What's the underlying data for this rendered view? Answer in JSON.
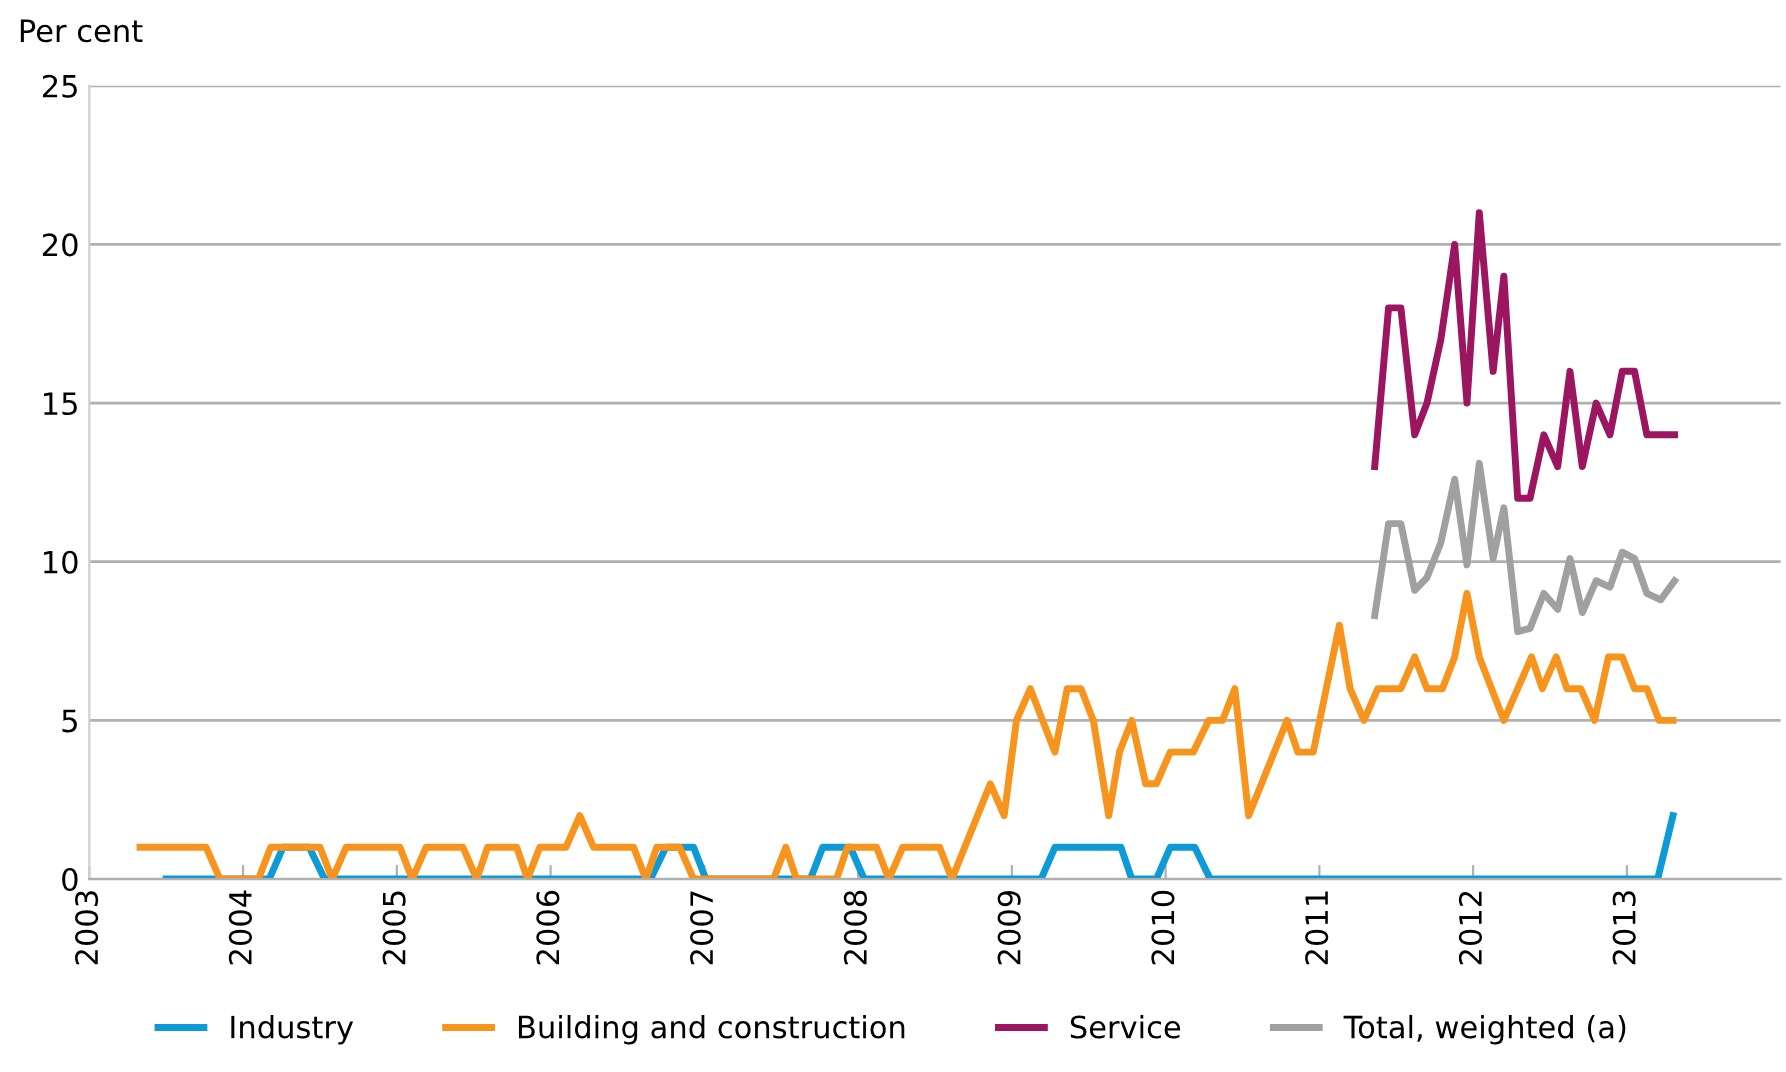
{
  "chart_data": {
    "type": "line",
    "ylabel": "Per cent",
    "xlim": [
      2003,
      2014
    ],
    "ylim": [
      0,
      25
    ],
    "xticks": [
      2003,
      2004,
      2005,
      2006,
      2007,
      2008,
      2009,
      2010,
      2011,
      2012,
      2013
    ],
    "yticks": [
      0,
      5,
      10,
      15,
      20,
      25
    ],
    "grid": "y",
    "legend": "bottom",
    "marker": "none",
    "line_style": "solid",
    "series": [
      {
        "name": "Industry",
        "color": "#0d9ad6",
        "x": [
          2003.5,
          2004.17,
          2004.26,
          2004.43,
          2004.53,
          2006.65,
          2006.75,
          2006.93,
          2007.01,
          2007.69,
          2007.77,
          2007.95,
          2008.04,
          2009.19,
          2009.28,
          2009.71,
          2009.78,
          2009.94,
          2010.03,
          2010.19,
          2010.29,
          2013.2,
          2013.3
        ],
        "values": [
          0,
          0,
          1,
          1,
          0,
          0,
          1,
          1,
          0,
          0,
          1,
          1,
          0,
          0,
          1,
          1,
          0,
          0,
          1,
          1,
          0,
          0,
          2
        ]
      },
      {
        "name": "Building and construction",
        "color": "#f7941d",
        "x": [
          2003.33,
          2003.76,
          2003.85,
          2004.1,
          2004.18,
          2004.5,
          2004.58,
          2004.67,
          2005.02,
          2005.1,
          2005.19,
          2005.43,
          2005.52,
          2005.59,
          2005.78,
          2005.85,
          2005.93,
          2006.1,
          2006.19,
          2006.28,
          2006.54,
          2006.62,
          2006.69,
          2006.84,
          2006.93,
          2007.45,
          2007.53,
          2007.6,
          2007.86,
          2007.93,
          2008.12,
          2008.2,
          2008.29,
          2008.53,
          2008.61,
          2008.86,
          2008.95,
          2009.03,
          2009.12,
          2009.28,
          2009.36,
          2009.45,
          2009.53,
          2009.63,
          2009.7,
          2009.78,
          2009.87,
          2009.94,
          2010.03,
          2010.18,
          2010.28,
          2010.37,
          2010.45,
          2010.54,
          2010.79,
          2010.86,
          2010.96,
          2011.13,
          2011.2,
          2011.29,
          2011.38,
          2011.53,
          2011.62,
          2011.7,
          2011.8,
          2011.88,
          2011.96,
          2012.04,
          2012.2,
          2012.38,
          2012.45,
          2012.54,
          2012.61,
          2012.7,
          2012.79,
          2012.88,
          2012.97,
          2013.05,
          2013.13,
          2013.21,
          2013.3
        ],
        "values": [
          1,
          1,
          0,
          0,
          1,
          1,
          0,
          1,
          1,
          0,
          1,
          1,
          0,
          1,
          1,
          0,
          1,
          1,
          2,
          1,
          1,
          0,
          1,
          1,
          0,
          0,
          1,
          0,
          0,
          1,
          1,
          0,
          1,
          1,
          0,
          3,
          2,
          5,
          6,
          4,
          6,
          6,
          5,
          2,
          4,
          5,
          3,
          3,
          4,
          4,
          5,
          5,
          6,
          2,
          5,
          4,
          4,
          8,
          6,
          5,
          6,
          6,
          7,
          6,
          6,
          7,
          9,
          7,
          5,
          7,
          6,
          7,
          6,
          6,
          5,
          7,
          7,
          6,
          6,
          5,
          5
        ]
      },
      {
        "name": "Service",
        "color": "#9b1560",
        "x": [
          2011.36,
          2011.45,
          2011.53,
          2011.62,
          2011.7,
          2011.79,
          2011.88,
          2011.96,
          2012.04,
          2012.13,
          2012.2,
          2012.29,
          2012.37,
          2012.46,
          2012.55,
          2012.63,
          2012.71,
          2012.8,
          2012.89,
          2012.97,
          2013.05,
          2013.13,
          2013.31
        ],
        "values": [
          13,
          18,
          18,
          14,
          15,
          17,
          20,
          15,
          21,
          16,
          19,
          12,
          12,
          14,
          13,
          16,
          13,
          15,
          14,
          16,
          16,
          14,
          14
        ]
      },
      {
        "name": "Total, weighted (a)",
        "color": "#a0a0a3",
        "x": [
          2011.36,
          2011.45,
          2011.53,
          2011.62,
          2011.7,
          2011.79,
          2011.88,
          2011.96,
          2012.04,
          2012.13,
          2012.2,
          2012.29,
          2012.37,
          2012.46,
          2012.55,
          2012.63,
          2012.71,
          2012.8,
          2012.89,
          2012.97,
          2013.05,
          2013.13,
          2013.22,
          2013.31
        ],
        "values": [
          8.3,
          11.2,
          11.2,
          9.1,
          9.5,
          10.6,
          12.6,
          9.9,
          13.1,
          10.1,
          11.7,
          7.8,
          7.9,
          9.0,
          8.5,
          10.1,
          8.4,
          9.4,
          9.2,
          10.3,
          10.1,
          9.0,
          8.8,
          9.4
        ]
      }
    ]
  }
}
